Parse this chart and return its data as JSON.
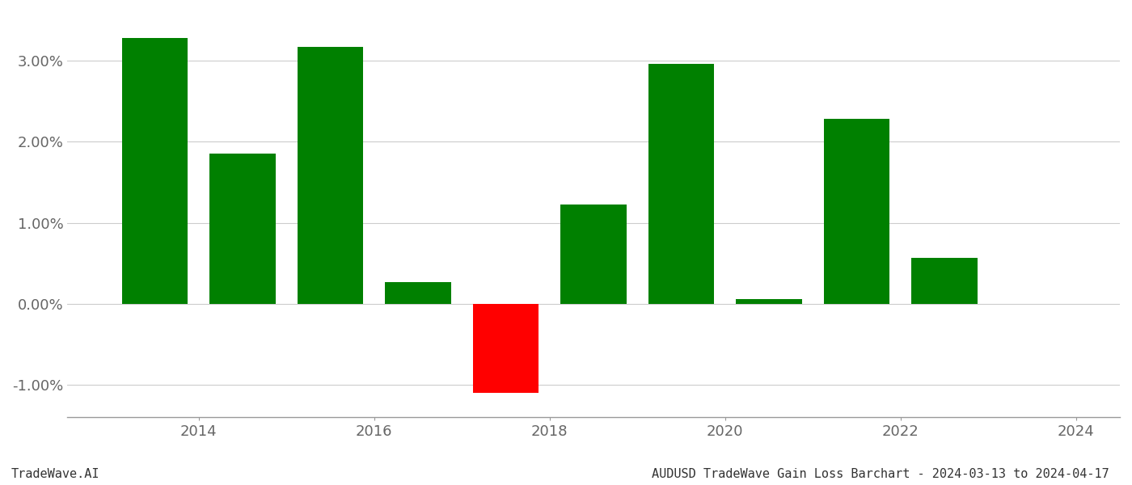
{
  "years": [
    2013.5,
    2014.5,
    2015.5,
    2016.5,
    2017.5,
    2018.5,
    2019.5,
    2020.5,
    2021.5,
    2022.5
  ],
  "values": [
    3.28,
    1.85,
    3.17,
    0.27,
    -1.1,
    1.22,
    2.96,
    0.06,
    2.28,
    0.57
  ],
  "bar_colors": [
    "#008000",
    "#008000",
    "#008000",
    "#008000",
    "#ff0000",
    "#008000",
    "#008000",
    "#008000",
    "#008000",
    "#008000"
  ],
  "title": "AUDUSD TradeWave Gain Loss Barchart - 2024-03-13 to 2024-04-17",
  "watermark": "TradeWave.AI",
  "ylim": [
    -1.4,
    3.6
  ],
  "yticks": [
    -1.0,
    0.0,
    1.0,
    2.0,
    3.0
  ],
  "ytick_labels": [
    "-1.00%",
    "0.00%",
    "1.00%",
    "2.00%",
    "3.00%"
  ],
  "xticks": [
    2014,
    2016,
    2018,
    2020,
    2022,
    2024
  ],
  "xtick_labels": [
    "2014",
    "2016",
    "2018",
    "2020",
    "2022",
    "2024"
  ],
  "xlim": [
    2012.5,
    2024.5
  ],
  "bar_width": 0.75,
  "background_color": "#ffffff",
  "grid_color": "#cccccc",
  "axis_color": "#999999",
  "title_fontsize": 11,
  "watermark_fontsize": 11,
  "tick_fontsize": 13
}
